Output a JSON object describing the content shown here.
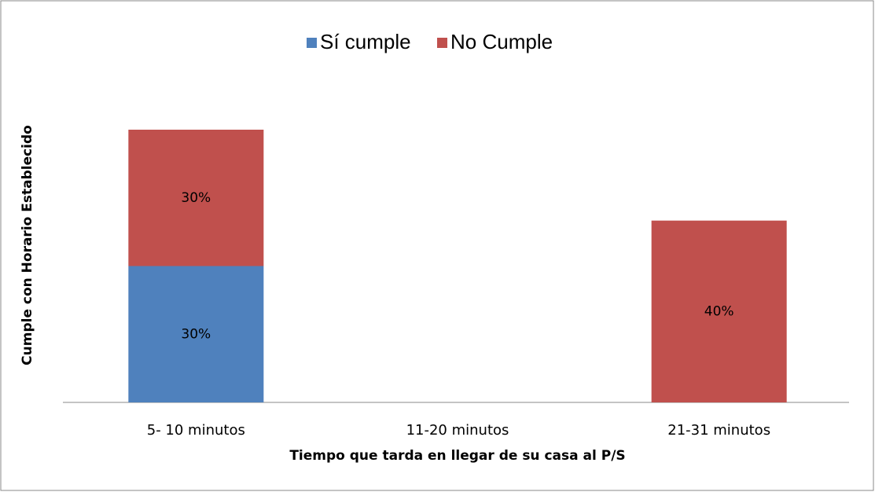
{
  "chart_data": {
    "type": "stacked-bar",
    "categories": [
      "5- 10 minutos",
      "11-20 minutos",
      "21-31 minutos"
    ],
    "series": [
      {
        "name": "Sí cumple",
        "color": "#4f81bd",
        "values": [
          30,
          null,
          null
        ],
        "value_labels": [
          "30%",
          null,
          null
        ]
      },
      {
        "name": "No Cumple",
        "color": "#c0504d",
        "values": [
          30,
          null,
          40
        ],
        "value_labels": [
          "30%",
          null,
          "40%"
        ]
      }
    ],
    "xlabel": "Tiempo que tarda en llegar de su casa al P/S",
    "ylabel": "Cumple con Horario Establecido",
    "legend": "top"
  }
}
